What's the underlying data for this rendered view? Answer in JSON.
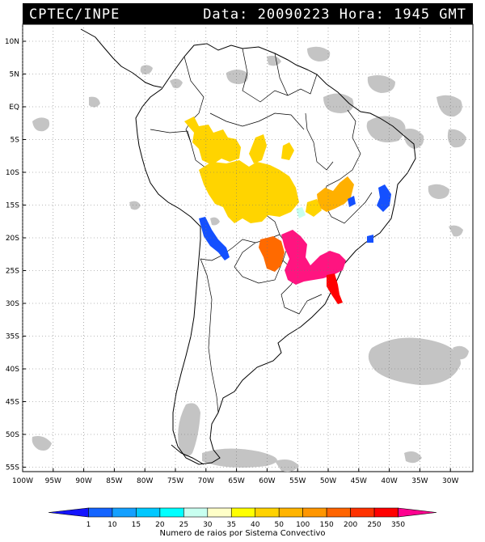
{
  "header": {
    "left": "CPTEC/INPE",
    "right": "Data: 20090223 Hora: 1945 GMT"
  },
  "latitude_labels": [
    "10N",
    "5N",
    "EQ",
    "5S",
    "10S",
    "15S",
    "20S",
    "25S",
    "30S",
    "35S",
    "40S",
    "45S",
    "50S",
    "55S"
  ],
  "longitude_labels": [
    "100W",
    "95W",
    "90W",
    "85W",
    "80W",
    "75W",
    "70W",
    "65W",
    "60W",
    "55W",
    "50W",
    "45W",
    "40W",
    "35W",
    "30W"
  ],
  "legend": {
    "caption": "Numero de raios por Sistema Convectivo",
    "ticks": [
      "1",
      "10",
      "15",
      "20",
      "25",
      "30",
      "35",
      "40",
      "50",
      "100",
      "150",
      "200",
      "250",
      "350"
    ],
    "colors": [
      "#1414ff",
      "#1464ff",
      "#14a0ff",
      "#00c8ff",
      "#00ffff",
      "#c8fff0",
      "#ffffc8",
      "#ffff00",
      "#ffd200",
      "#ffb400",
      "#ff9600",
      "#ff6400",
      "#ff3200",
      "#ff0000",
      "#ff0090"
    ]
  },
  "colors": {
    "cloud": "#c4c4c4",
    "yellow": "#ffd400",
    "orange": "#ffb000",
    "darkorange": "#ff6a00",
    "pink": "#ff1480",
    "red": "#ff0000",
    "blue": "#1450ff"
  }
}
